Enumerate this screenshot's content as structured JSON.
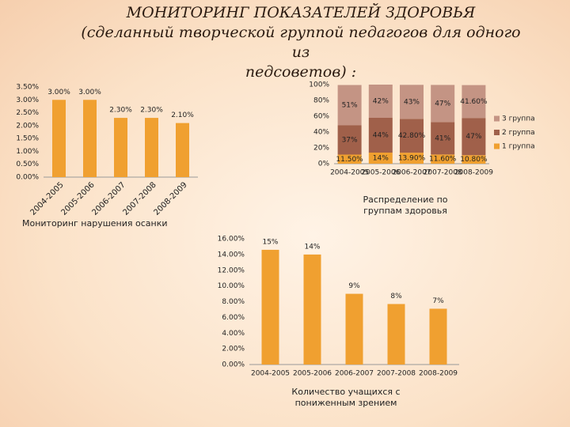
{
  "slide_title": [
    "МОНИТОРИНГ ПОКАЗАТЕЛЕЙ ЗДОРОВЬЯ",
    "(сделанный  творческой группой педагогов для одного из",
    "педсоветов) :"
  ],
  "chart_data": [
    {
      "type": "bar",
      "title": "Мониторинг нарушения осанки",
      "categories": [
        "2004-2005",
        "2005-2006",
        "2006-2007",
        "2007-2008",
        "2008-2009"
      ],
      "values": [
        3.0,
        3.0,
        2.3,
        2.3,
        2.1
      ],
      "value_labels": [
        "3.00%",
        "3.00%",
        "2.30%",
        "2.30%",
        "2.10%"
      ],
      "color": "#f0a030",
      "ylim": [
        0,
        3.5
      ],
      "yticks": [
        {
          "value": 0,
          "label": "0.00%"
        },
        {
          "value": 0.5,
          "label": "0.50%"
        },
        {
          "value": 1,
          "label": "1.00%"
        },
        {
          "value": 1.5,
          "label": "1.50%"
        },
        {
          "value": 2,
          "label": "2.00%"
        },
        {
          "value": 2.5,
          "label": "2.50%"
        },
        {
          "value": 3,
          "label": "3.00%"
        },
        {
          "value": 3.5,
          "label": "3.50%"
        }
      ]
    },
    {
      "type": "stacked_bar",
      "title": "Распределение по группам здоровья",
      "categories": [
        "2004-2005",
        "2005-2006",
        "2006-2007",
        "2007-2008",
        "2008-2009"
      ],
      "series": [
        {
          "name": "1 группа",
          "color": "#f0a030",
          "values": [
            11.5,
            14,
            13.9,
            11.6,
            10.8
          ],
          "value_labels": [
            "11.50%",
            "14%",
            "13.90%",
            "11.60%",
            "10.80%"
          ]
        },
        {
          "name": "2 группа",
          "color": "#a0604a",
          "values": [
            37,
            44,
            42.8,
            41,
            47
          ],
          "value_labels": [
            "37%",
            "44%",
            "42.80%",
            "41%",
            "47%"
          ]
        },
        {
          "name": "3 группа",
          "color": "#c49484",
          "values": [
            51,
            42,
            43,
            47,
            41.6
          ],
          "value_labels": [
            "51%",
            "42%",
            "43%",
            "47%",
            "41.60%"
          ]
        }
      ],
      "ylim": [
        0,
        100
      ],
      "yticks": [
        {
          "value": 0,
          "label": "0%"
        },
        {
          "value": 20,
          "label": "20%"
        },
        {
          "value": 40,
          "label": "40%"
        },
        {
          "value": 60,
          "label": "60%"
        },
        {
          "value": 80,
          "label": "80%"
        },
        {
          "value": 100,
          "label": "100%"
        }
      ],
      "legend": "right"
    },
    {
      "type": "bar",
      "title": "Количество учащихся с пониженным зрением",
      "categories": [
        "2004-2005",
        "2005-2006",
        "2006-2007",
        "2007-2008",
        "2008-2009"
      ],
      "values": [
        14.6,
        14,
        9,
        7.7,
        7.1
      ],
      "value_labels": [
        "15%",
        "14%",
        "9%",
        "8%",
        "7%"
      ],
      "color": "#f0a030",
      "ylim": [
        0,
        16
      ],
      "yticks": [
        {
          "value": 0,
          "label": "0.00%"
        },
        {
          "value": 2,
          "label": "2.00%"
        },
        {
          "value": 4,
          "label": "4.00%"
        },
        {
          "value": 6,
          "label": "6.00%"
        },
        {
          "value": 8,
          "label": "8.00%"
        },
        {
          "value": 10,
          "label": "10.00%"
        },
        {
          "value": 12,
          "label": "12.00%"
        },
        {
          "value": 14,
          "label": "14.00%"
        },
        {
          "value": 16,
          "label": "16.00%"
        }
      ]
    }
  ]
}
